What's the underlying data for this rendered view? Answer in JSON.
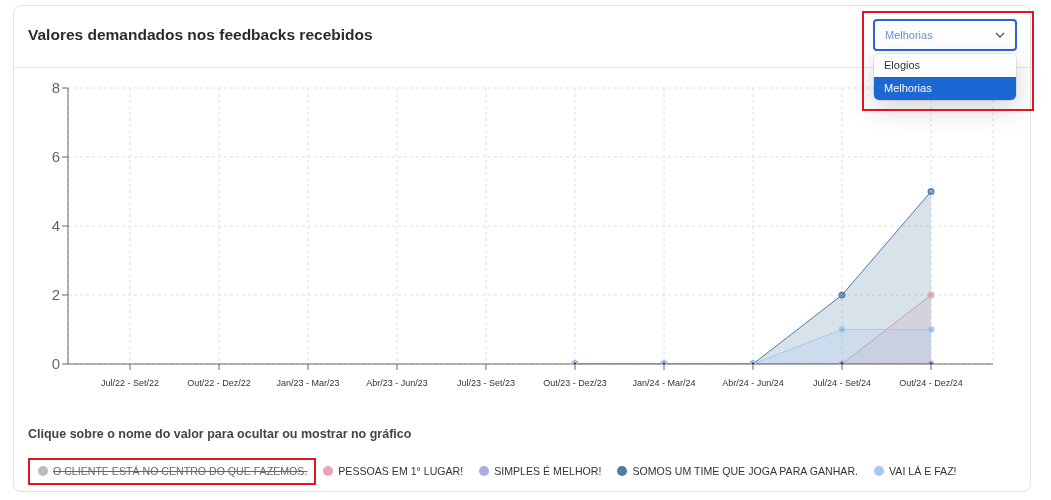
{
  "chart_data": {
    "type": "area",
    "title": "Valores demandados nos feedbacks recebidos",
    "categories": [
      "Jul/22 - Set/22",
      "Out/22 - Dez/22",
      "Jan/23 - Mar/23",
      "Abr/23 - Jun/23",
      "Jul/23 - Set/23",
      "Out/23 - Dez/23",
      "Jan/24 - Mar/24",
      "Abr/24 - Jun/24",
      "Jul/24 - Set/24",
      "Out/24 - Dez/24"
    ],
    "series": [
      {
        "name": "O CLIENTE ESTÁ NO CENTRO DO QUE FAZEMOS.",
        "color": "#bdbdbd",
        "values": [
          null,
          null,
          null,
          null,
          null,
          null,
          null,
          null,
          null,
          null
        ]
      },
      {
        "name": "PESSOAS EM 1° LUGAR!",
        "color": "#e9a6b2",
        "values": [
          null,
          null,
          null,
          null,
          null,
          0,
          0,
          0,
          0,
          2
        ]
      },
      {
        "name": "SIMPLES É MELHOR!",
        "type": "line",
        "color": "#a9ade0",
        "values": [
          null,
          null,
          null,
          null,
          null,
          0,
          0,
          0,
          0,
          0
        ]
      },
      {
        "name": "SOMOS UM TIME QUE JOGA PARA GANHAR.",
        "color": "#4e7aa6",
        "values": [
          null,
          null,
          null,
          null,
          null,
          0,
          0,
          0,
          2,
          5
        ]
      },
      {
        "name": "VAI LÁ E FAZ!",
        "color": "#a3c8f7",
        "values": [
          null,
          null,
          null,
          null,
          null,
          0,
          0,
          0,
          1,
          1
        ]
      }
    ],
    "ylim": [
      0,
      8
    ],
    "yticks": [
      0,
      2,
      4,
      6,
      8
    ],
    "grid": true,
    "legend": "bottom",
    "marker": "circle",
    "annotations": [
      "Clique sobre o nome do valor para ocultar ou mostrar no gráfico",
      "Melhorias",
      "Elogios",
      "Melhorias"
    ]
  }
}
